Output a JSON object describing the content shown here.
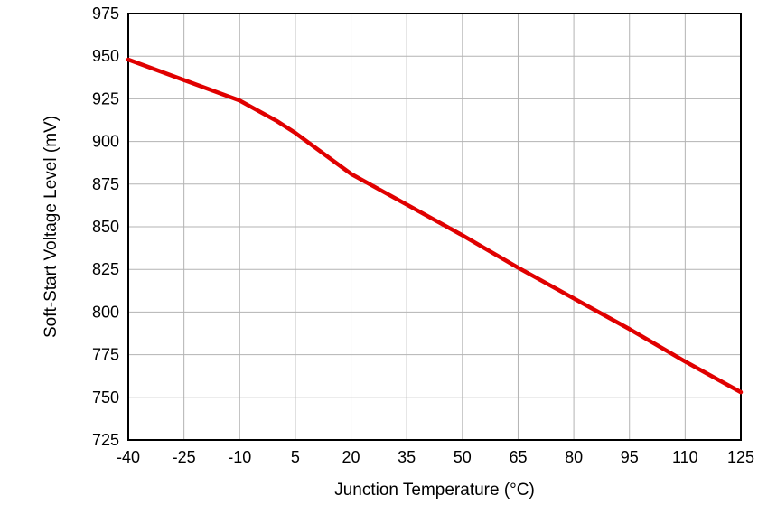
{
  "chart_data": {
    "type": "line",
    "title": "",
    "xlabel": "Junction Temperature (°C)",
    "ylabel": "Soft-Start Voltage Level (mV)",
    "xlim": [
      -40,
      125
    ],
    "ylim": [
      725,
      975
    ],
    "x_ticks": [
      -40,
      -25,
      -10,
      5,
      20,
      35,
      50,
      65,
      80,
      95,
      110,
      125
    ],
    "y_ticks": [
      725,
      750,
      775,
      800,
      825,
      850,
      875,
      900,
      925,
      950,
      975
    ],
    "grid": true,
    "legend_position": "none",
    "series": [
      {
        "name": "Soft-Start Voltage Level",
        "color": "#e00000",
        "x": [
          -40,
          -25,
          -10,
          0,
          5,
          20,
          25,
          35,
          50,
          65,
          80,
          95,
          110,
          125
        ],
        "y": [
          948,
          936,
          924,
          912,
          905,
          881,
          875,
          863,
          845,
          826,
          808,
          790,
          771,
          753
        ]
      }
    ]
  }
}
